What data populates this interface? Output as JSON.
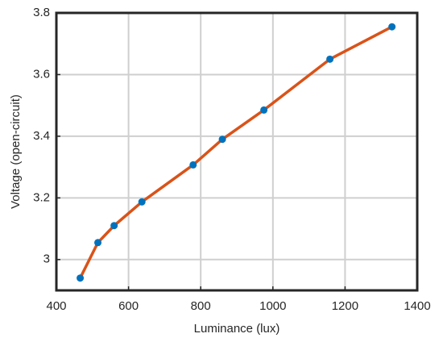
{
  "chart_data": {
    "type": "line",
    "x_label": "Luminance (lux)",
    "y_label": "Voltage (open-circuit)",
    "series": [
      {
        "color": "#d95319",
        "marker_color": "#0072bd",
        "x": [
          466,
          515,
          560,
          637,
          779,
          860,
          975,
          1158,
          1330
        ],
        "values": [
          2.94,
          3.055,
          3.11,
          3.187,
          3.307,
          3.39,
          3.485,
          3.65,
          3.755
        ]
      }
    ],
    "xlim": [
      400,
      1400
    ],
    "xticks": [
      400,
      600,
      800,
      1000,
      1200,
      1400
    ],
    "ylim": [
      2.9,
      3.8
    ],
    "yticks": [
      3,
      3.2,
      3.4,
      3.6,
      3.8
    ],
    "grid": true
  }
}
